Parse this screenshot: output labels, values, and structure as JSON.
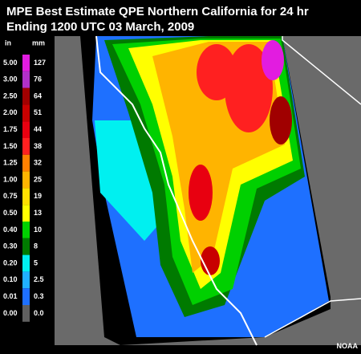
{
  "header": {
    "title_line1": "MPE Best Estimate QPE Northern California for 24 hr",
    "title_line2": "Ending 1200 UTC 03 March, 2009"
  },
  "legend": {
    "in_heading": "in",
    "mm_heading": "mm",
    "entries": [
      {
        "in": "5.00",
        "mm": "127",
        "color": "#e21ce0"
      },
      {
        "in": "3.00",
        "mm": "76",
        "color": "#b030c8"
      },
      {
        "in": "2.50",
        "mm": "64",
        "color": "#a00000"
      },
      {
        "in": "2.00",
        "mm": "51",
        "color": "#c80000"
      },
      {
        "in": "1.75",
        "mm": "44",
        "color": "#e80010"
      },
      {
        "in": "1.50",
        "mm": "38",
        "color": "#ff2020"
      },
      {
        "in": "1.25",
        "mm": "32",
        "color": "#ff8000"
      },
      {
        "in": "1.00",
        "mm": "25",
        "color": "#ffb400"
      },
      {
        "in": "0.75",
        "mm": "19",
        "color": "#ffe000"
      },
      {
        "in": "0.50",
        "mm": "13",
        "color": "#ffff00"
      },
      {
        "in": "0.40",
        "mm": "10",
        "color": "#00d000"
      },
      {
        "in": "0.30",
        "mm": "8",
        "color": "#007a00"
      },
      {
        "in": "0.20",
        "mm": "5",
        "color": "#00f0f0"
      },
      {
        "in": "0.10",
        "mm": "2.5",
        "color": "#20b0ff"
      },
      {
        "in": "0.01",
        "mm": "0.3",
        "color": "#1e70ff"
      },
      {
        "in": "0.00",
        "mm": "0.0",
        "color": "#606060"
      }
    ]
  },
  "credit": "NOAA"
}
